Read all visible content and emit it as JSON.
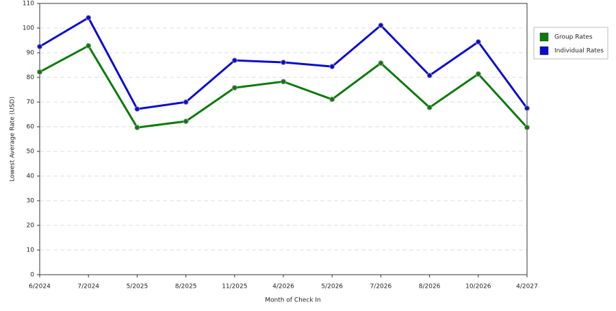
{
  "chart_data": {
    "type": "line",
    "x_label": "Month of Check In",
    "y_label": "Lowest Average Rate (USD)",
    "categories": [
      "6/2024",
      "7/2024",
      "5/2025",
      "8/2025",
      "11/2025",
      "4/2026",
      "5/2026",
      "7/2026",
      "8/2026",
      "10/2026",
      "4/2027"
    ],
    "series": [
      {
        "name": "Group Rates",
        "color": "#0a7a0a",
        "values": [
          82.2,
          92.8,
          59.7,
          62.2,
          75.8,
          78.3,
          71.1,
          85.8,
          67.8,
          81.4,
          59.7
        ]
      },
      {
        "name": "Individual Rates",
        "color": "#0a0ad2",
        "values": [
          92.5,
          104.2,
          67.2,
          70.0,
          86.9,
          86.1,
          84.4,
          101.1,
          80.8,
          94.4,
          67.5
        ]
      }
    ],
    "ylim": [
      0,
      110
    ],
    "yticks": [
      0,
      10,
      20,
      30,
      40,
      50,
      60,
      70,
      80,
      90,
      100,
      110
    ],
    "grid": true,
    "legend": "right"
  }
}
